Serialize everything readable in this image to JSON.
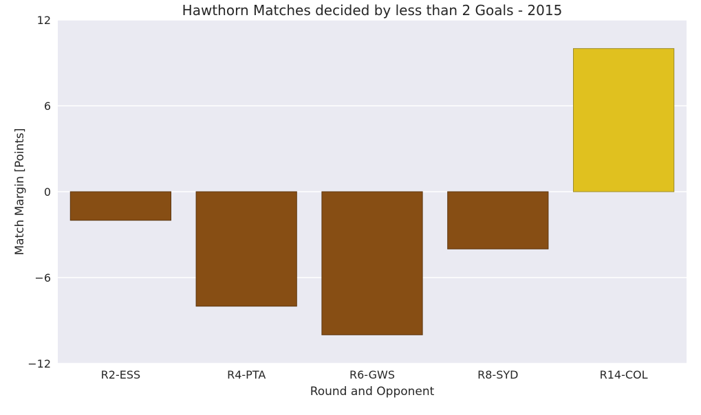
{
  "chart_data": {
    "type": "bar",
    "title": "Hawthorn Matches decided by less than 2 Goals - 2015",
    "xlabel": "Round and Opponent",
    "ylabel": "Match Margin [Points]",
    "categories": [
      "R2-ESS",
      "R4-PTA",
      "R6-GWS",
      "R8-SYD",
      "R14-COL"
    ],
    "values": [
      -2,
      -8,
      -10,
      -4,
      10
    ],
    "ylim": [
      -12,
      12
    ],
    "yticks": [
      -12,
      -6,
      0,
      6,
      12
    ],
    "grid": true,
    "background_color": "#eaeaf2",
    "loss_color": "#874e14",
    "win_color": "#e0c11f"
  }
}
